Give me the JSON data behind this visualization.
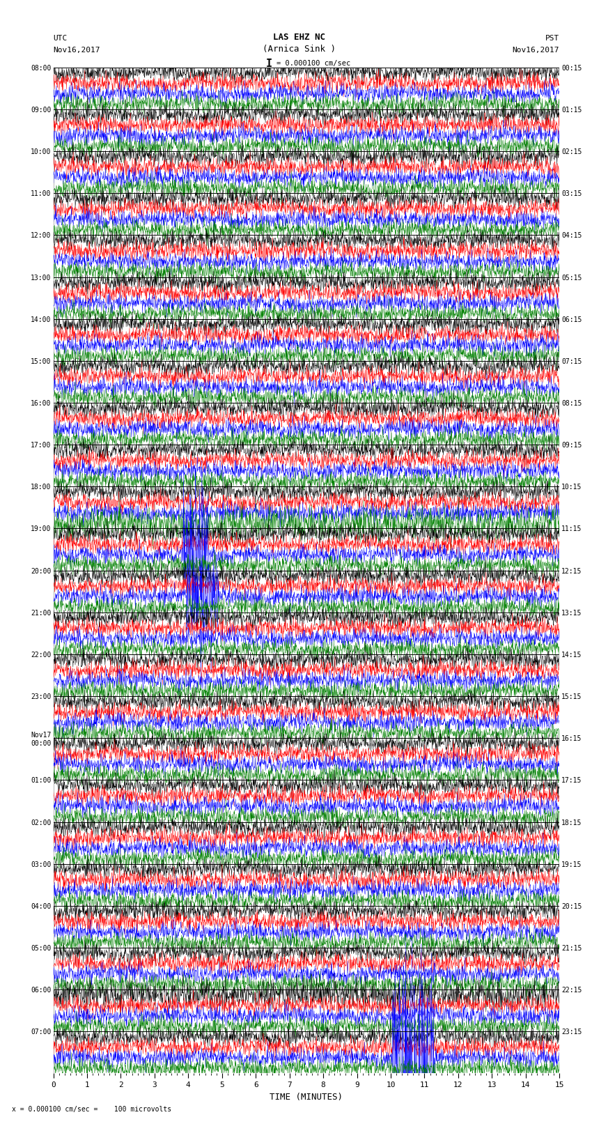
{
  "title_line1": "LAS EHZ NC",
  "title_line2": "(Arnica Sink )",
  "scale_label": "= 0.000100 cm/sec",
  "utc_label": "UTC",
  "utc_date": "Nov16,2017",
  "pst_label": "PST",
  "pst_date": "Nov16,2017",
  "bottom_label": "x = 0.000100 cm/sec =    100 microvolts",
  "xlabel": "TIME (MINUTES)",
  "xlim": [
    0,
    15
  ],
  "xticks": [
    0,
    1,
    2,
    3,
    4,
    5,
    6,
    7,
    8,
    9,
    10,
    11,
    12,
    13,
    14,
    15
  ],
  "background_color": "#ffffff",
  "trace_colors": [
    "black",
    "red",
    "blue",
    "green"
  ],
  "left_times_utc": [
    "08:00",
    "09:00",
    "10:00",
    "11:00",
    "12:00",
    "13:00",
    "14:00",
    "15:00",
    "16:00",
    "17:00",
    "18:00",
    "19:00",
    "20:00",
    "21:00",
    "22:00",
    "23:00",
    "Nov17\n00:00",
    "01:00",
    "02:00",
    "03:00",
    "04:00",
    "05:00",
    "06:00",
    "07:00"
  ],
  "right_times_pst": [
    "00:15",
    "01:15",
    "02:15",
    "03:15",
    "04:15",
    "05:15",
    "06:15",
    "07:15",
    "08:15",
    "09:15",
    "10:15",
    "11:15",
    "12:15",
    "13:15",
    "14:15",
    "15:15",
    "16:15",
    "17:15",
    "18:15",
    "19:15",
    "20:15",
    "21:15",
    "22:15",
    "23:15"
  ],
  "n_rows": 24,
  "traces_per_row": 4,
  "noise_amplitude": 0.04,
  "grid_color": "#999999",
  "row_separator_color": "#000000"
}
